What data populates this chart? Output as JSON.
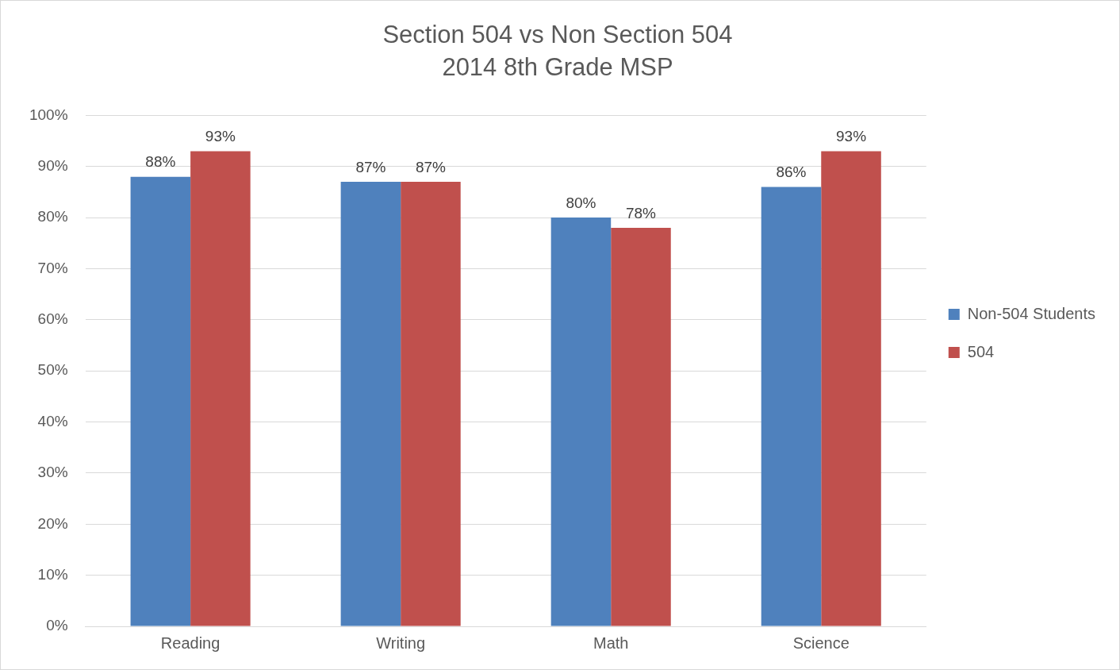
{
  "chart_data": {
    "type": "bar",
    "title": "Section 504 vs Non Section 504",
    "subtitle": "2014 8th Grade MSP",
    "categories": [
      "Reading",
      "Writing",
      "Math",
      "Science"
    ],
    "series": [
      {
        "name": "Non-504 Students",
        "color": "#4f81bd",
        "values": [
          88,
          87,
          80,
          86
        ],
        "value_labels": [
          "88%",
          "87%",
          "80%",
          "86%"
        ]
      },
      {
        "name": "504",
        "color": "#c0504d",
        "values": [
          93,
          87,
          78,
          93
        ],
        "value_labels": [
          "93%",
          "87%",
          "78%",
          "93%"
        ]
      }
    ],
    "ylim": [
      0,
      100
    ],
    "yticks": [
      {
        "value": 0,
        "label": "0%"
      },
      {
        "value": 10,
        "label": "10%"
      },
      {
        "value": 20,
        "label": "20%"
      },
      {
        "value": 30,
        "label": "30%"
      },
      {
        "value": 40,
        "label": "40%"
      },
      {
        "value": 50,
        "label": "50%"
      },
      {
        "value": 60,
        "label": "60%"
      },
      {
        "value": 70,
        "label": "70%"
      },
      {
        "value": 80,
        "label": "80%"
      },
      {
        "value": 90,
        "label": "90%"
      },
      {
        "value": 100,
        "label": "100%"
      }
    ],
    "grid": "y",
    "legend": "right"
  }
}
